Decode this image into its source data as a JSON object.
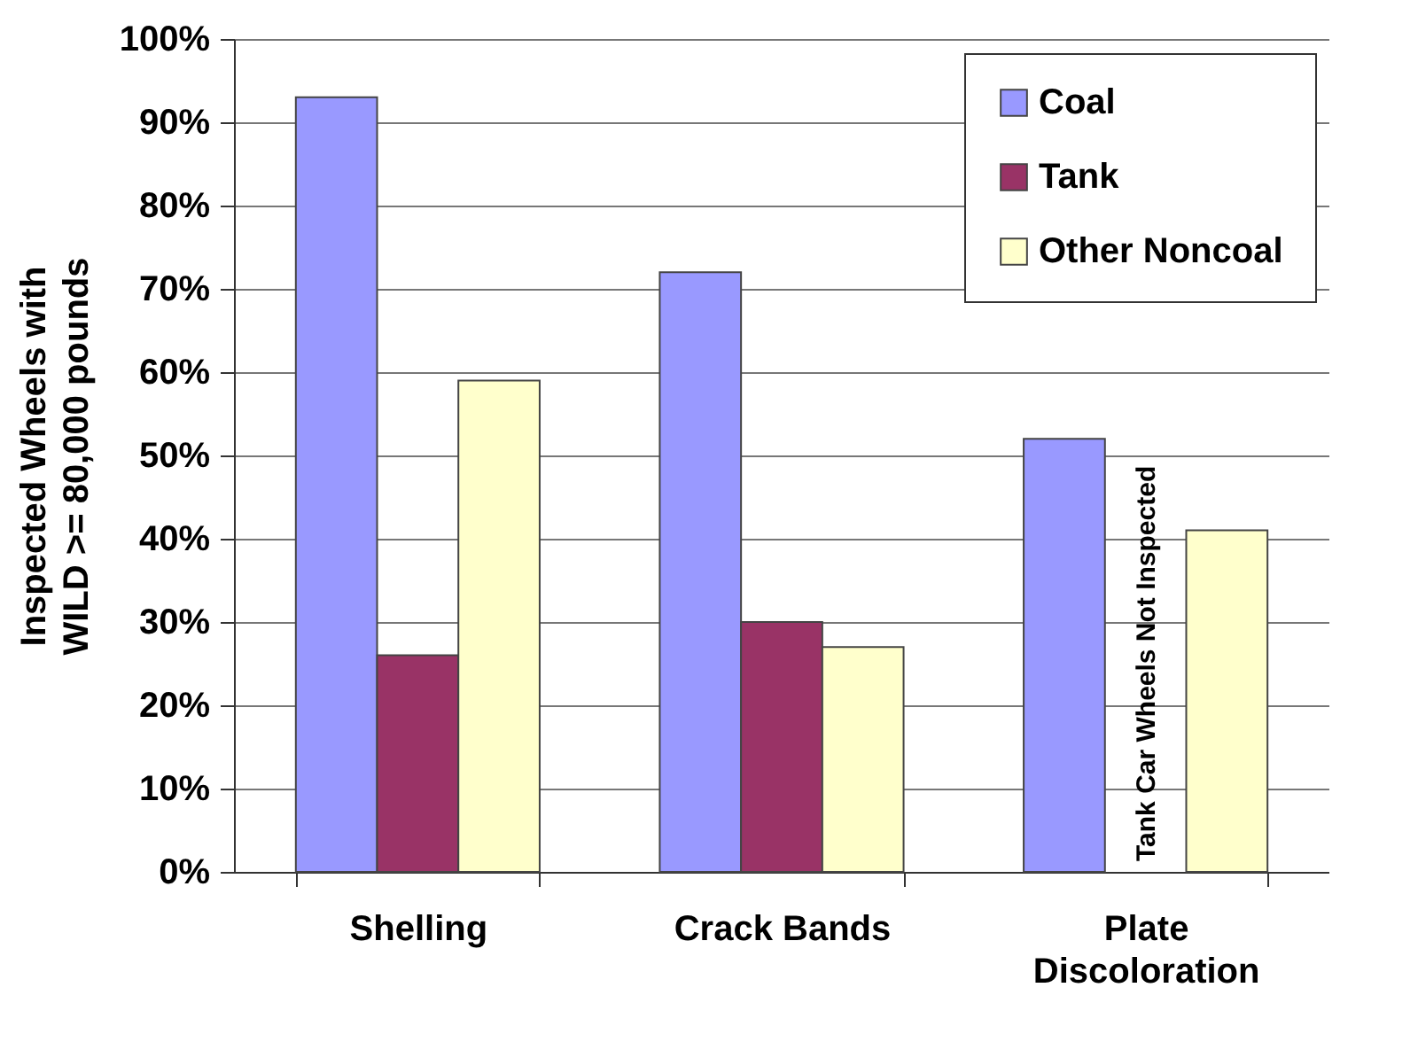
{
  "chart_data": {
    "type": "bar",
    "ylabel": "Inspected Wheels with WILD >= 80,000 pounds",
    "categories": [
      "Shelling",
      "Crack Bands",
      "Plate Discoloration"
    ],
    "series": [
      {
        "name": "Coal",
        "color": "#9999ff",
        "values": [
          93,
          72,
          52
        ]
      },
      {
        "name": "Tank",
        "color": "#993366",
        "values": [
          26,
          30,
          null
        ]
      },
      {
        "name": "Other Noncoal",
        "color": "#ffffcc",
        "values": [
          59,
          27,
          41
        ]
      }
    ],
    "ylim": [
      0,
      100
    ],
    "yticks": [
      {
        "value": 0,
        "label": "0%"
      },
      {
        "value": 10,
        "label": "10%"
      },
      {
        "value": 20,
        "label": "20%"
      },
      {
        "value": 30,
        "label": "30%"
      },
      {
        "value": 40,
        "label": "40%"
      },
      {
        "value": 50,
        "label": "50%"
      },
      {
        "value": 60,
        "label": "60%"
      },
      {
        "value": 70,
        "label": "70%"
      },
      {
        "value": 80,
        "label": "80%"
      },
      {
        "value": 90,
        "label": "90%"
      },
      {
        "value": 100,
        "label": "100%"
      }
    ],
    "annotations": [
      "Tank Car Wheels Not Inspected"
    ],
    "grid": "y",
    "legend": "top right"
  }
}
